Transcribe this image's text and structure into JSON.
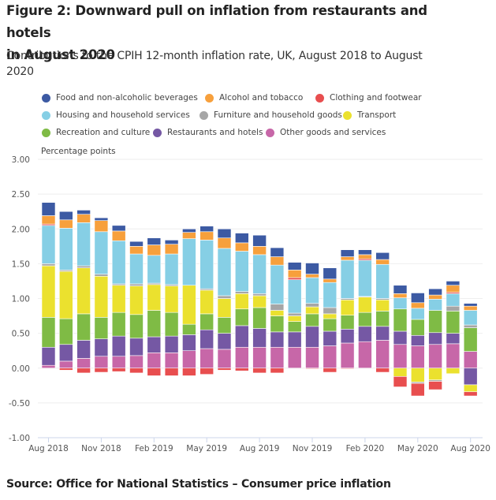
{
  "chart_data": {
    "type": "bar",
    "stacked": true,
    "title": "Figure 2: Downward pull on inflation from restaurants and hotels in August 2020",
    "title_lines": [
      "Figure 2: Downward pull on inflation from restaurants and hotels",
      "in August 2020"
    ],
    "subtitle_lines": [
      "Contributions to the CPIH 12-month inflation rate, UK, August 2018 to August",
      "2020"
    ],
    "ylabel": "Percentage points",
    "xlabel": "",
    "ylim": [
      -1.0,
      3.0
    ],
    "yticks": [
      3.0,
      2.5,
      2.0,
      1.5,
      1.0,
      0.5,
      0.0,
      -0.5,
      -1.0
    ],
    "ytick_labels": [
      "3.00",
      "2.50",
      "2.00",
      "1.50",
      "1.00",
      "0.50",
      "0.00",
      "-0.50",
      "-1.00"
    ],
    "grid": true,
    "legend_position": "top",
    "categories": [
      "Aug 2018",
      "Sep 2018",
      "Oct 2018",
      "Nov 2018",
      "Dec 2018",
      "Jan 2019",
      "Feb 2019",
      "Mar 2019",
      "Apr 2019",
      "May 2019",
      "Jun 2019",
      "Jul 2019",
      "Aug 2019",
      "Sep 2019",
      "Oct 2019",
      "Nov 2019",
      "Dec 2019",
      "Jan 2020",
      "Feb 2020",
      "Mar 2020",
      "Apr 2020",
      "May 2020",
      "Jun 2020",
      "Jul 2020",
      "Aug 2020"
    ],
    "xtick_labels": [
      {
        "index": 0,
        "label": "Aug 2018"
      },
      {
        "index": 3,
        "label": "Nov 2018"
      },
      {
        "index": 6,
        "label": "Feb 2019"
      },
      {
        "index": 9,
        "label": "May 2019"
      },
      {
        "index": 12,
        "label": "Aug 2019"
      },
      {
        "index": 15,
        "label": "Nov 2019"
      },
      {
        "index": 18,
        "label": "Feb 2020"
      },
      {
        "index": 21,
        "label": "May 2020"
      },
      {
        "index": 24,
        "label": "Aug 2020"
      }
    ],
    "series": [
      {
        "name": "Other goods and services",
        "color": "#c767a8",
        "values": [
          0.04,
          0.1,
          0.14,
          0.17,
          0.17,
          0.18,
          0.22,
          0.22,
          0.25,
          0.28,
          0.27,
          0.3,
          0.3,
          0.3,
          0.3,
          0.3,
          0.32,
          0.36,
          0.38,
          0.4,
          0.34,
          0.32,
          0.34,
          0.35,
          0.24
        ]
      },
      {
        "name": "Restaurants and hotels",
        "color": "#7558a4",
        "values": [
          0.26,
          0.24,
          0.26,
          0.25,
          0.29,
          0.25,
          0.23,
          0.24,
          0.23,
          0.27,
          0.23,
          0.31,
          0.27,
          0.22,
          0.22,
          0.3,
          0.21,
          0.2,
          0.22,
          0.2,
          0.19,
          0.15,
          0.17,
          0.15,
          -0.24
        ]
      },
      {
        "name": "Recreation and culture",
        "color": "#7fbb45",
        "values": [
          0.43,
          0.37,
          0.38,
          0.31,
          0.34,
          0.34,
          0.38,
          0.34,
          0.15,
          0.23,
          0.23,
          0.24,
          0.3,
          0.23,
          0.15,
          0.18,
          0.18,
          0.2,
          0.2,
          0.22,
          0.32,
          0.23,
          0.32,
          0.32,
          0.34
        ]
      },
      {
        "name": "Transport",
        "color": "#ebe12e",
        "values": [
          0.74,
          0.68,
          0.66,
          0.59,
          0.39,
          0.41,
          0.37,
          0.38,
          0.56,
          0.34,
          0.27,
          0.22,
          0.17,
          0.08,
          0.08,
          0.1,
          0.07,
          0.22,
          0.22,
          0.16,
          -0.12,
          -0.2,
          -0.17,
          -0.08,
          -0.1
        ]
      },
      {
        "name": "Furniture and household goods",
        "color": "#a6a6a6",
        "values": [
          0.03,
          0.02,
          0.03,
          0.03,
          0.02,
          0.03,
          0.02,
          0.02,
          0.0,
          0.02,
          0.04,
          0.03,
          0.03,
          0.09,
          0.04,
          0.05,
          0.09,
          0.02,
          0.01,
          0.02,
          0.0,
          -0.02,
          -0.02,
          0.07,
          0.04
        ]
      },
      {
        "name": "Housing and household services",
        "color": "#86cfe5",
        "values": [
          0.55,
          0.6,
          0.62,
          0.61,
          0.62,
          0.43,
          0.4,
          0.44,
          0.67,
          0.7,
          0.68,
          0.58,
          0.56,
          0.56,
          0.48,
          0.37,
          0.36,
          0.55,
          0.52,
          0.49,
          0.16,
          0.16,
          0.16,
          0.18,
          0.21
        ]
      },
      {
        "name": "Clothing and footwear",
        "color": "#e84e4f",
        "values": [
          0.02,
          -0.03,
          -0.07,
          -0.06,
          -0.05,
          -0.07,
          -0.11,
          -0.11,
          -0.11,
          -0.09,
          -0.03,
          -0.04,
          -0.07,
          -0.07,
          0.03,
          -0.01,
          -0.06,
          -0.01,
          0.02,
          -0.06,
          -0.15,
          -0.18,
          -0.12,
          0.02,
          -0.06
        ]
      },
      {
        "name": "Alcohol and tobacco",
        "color": "#f7a03c",
        "values": [
          0.12,
          0.12,
          0.12,
          0.16,
          0.14,
          0.11,
          0.15,
          0.14,
          0.09,
          0.12,
          0.15,
          0.12,
          0.12,
          0.12,
          0.11,
          0.05,
          0.05,
          0.05,
          0.06,
          0.07,
          0.06,
          0.08,
          0.06,
          0.1,
          0.06
        ]
      },
      {
        "name": "Food and non-alcoholic beverages",
        "color": "#3c5aa3",
        "values": [
          0.19,
          0.12,
          0.06,
          0.04,
          0.08,
          0.07,
          0.1,
          0.06,
          0.05,
          0.08,
          0.13,
          0.14,
          0.16,
          0.13,
          0.11,
          0.16,
          0.16,
          0.1,
          0.07,
          0.1,
          0.12,
          0.14,
          0.09,
          0.06,
          0.04
        ]
      }
    ]
  },
  "legend": {
    "items": [
      {
        "label": "Food and non-alcoholic beverages",
        "color": "#3c5aa3"
      },
      {
        "label": "Alcohol and tobacco",
        "color": "#f7a03c"
      },
      {
        "label": "Clothing and footwear",
        "color": "#e84e4f"
      },
      {
        "label": "Housing and household services",
        "color": "#86cfe5"
      },
      {
        "label": "Furniture and household goods",
        "color": "#a6a6a6"
      },
      {
        "label": "Transport",
        "color": "#ebe12e"
      },
      {
        "label": "Recreation and culture",
        "color": "#7fbb45"
      },
      {
        "label": "Restaurants and hotels",
        "color": "#7558a4"
      },
      {
        "label": "Other goods and services",
        "color": "#c767a8"
      }
    ]
  },
  "source": "Source: Office for National Statistics – Consumer price inflation"
}
